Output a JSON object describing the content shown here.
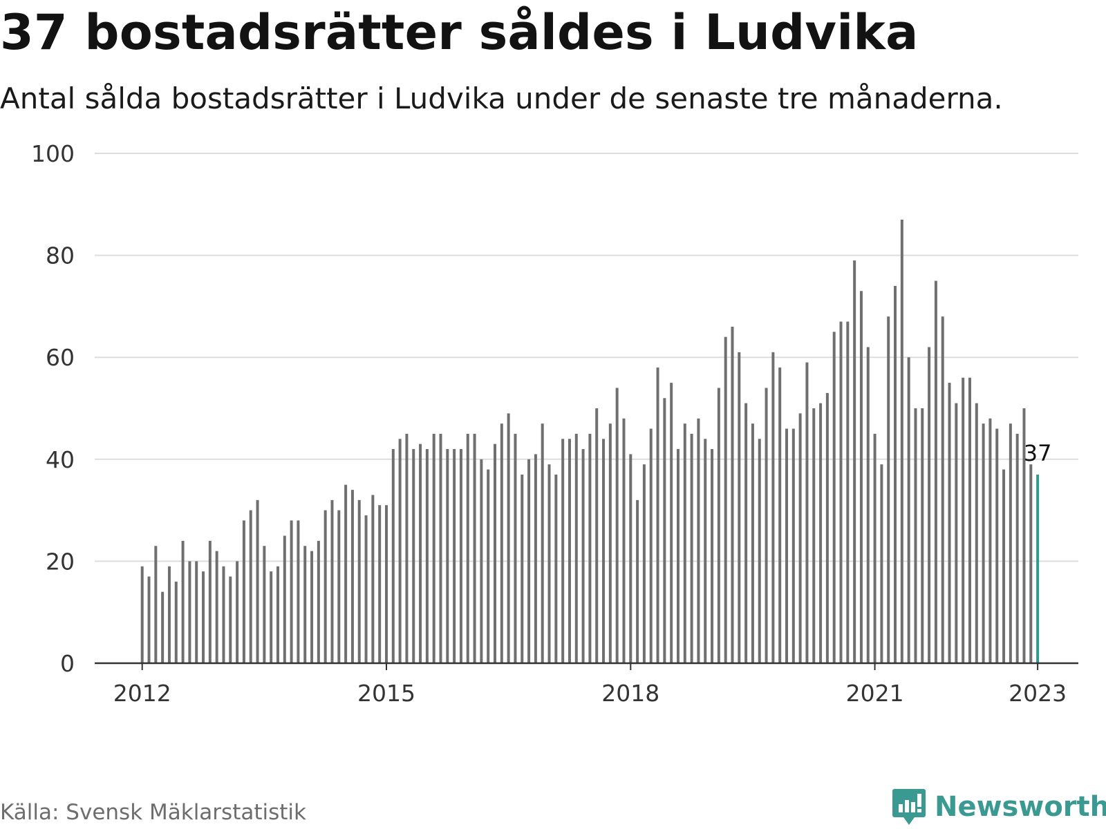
{
  "header": {
    "title": "37 bostadsrätter såldes i Ludvika",
    "subtitle": "Antal sålda bostadsrätter i Ludvika under de senaste tre månaderna."
  },
  "footer": {
    "source": "Källa: Svensk Mäklarstatistik",
    "brand": "Newsworthy",
    "brand_icon": "newsworthy-logo-icon"
  },
  "colors": {
    "bar": "#6f6f6f",
    "highlight": "#2a9d8f",
    "grid": "#dddddd",
    "axis": "#333333",
    "brand": "#3a9a92"
  },
  "chart_data": {
    "type": "bar",
    "title": "37 bostadsrätter såldes i Ludvika",
    "subtitle": "Antal sålda bostadsrätter i Ludvika under de senaste tre månaderna.",
    "ylim": [
      0,
      100
    ],
    "y_ticks": [
      0,
      20,
      40,
      60,
      80,
      100
    ],
    "x_ticks": [
      "2012",
      "2015",
      "2018",
      "2021",
      "2023"
    ],
    "xlim": [
      "2011-06",
      "2023-07"
    ],
    "grid": true,
    "series_start": "2012-01",
    "interval": "month",
    "values": [
      19,
      17,
      23,
      14,
      19,
      16,
      24,
      20,
      20,
      18,
      24,
      22,
      19,
      17,
      20,
      28,
      30,
      32,
      23,
      18,
      19,
      25,
      28,
      28,
      23,
      22,
      24,
      30,
      32,
      30,
      35,
      34,
      32,
      29,
      33,
      31,
      31,
      42,
      44,
      45,
      42,
      43,
      42,
      45,
      45,
      42,
      42,
      42,
      45,
      45,
      40,
      38,
      43,
      47,
      49,
      45,
      37,
      40,
      41,
      47,
      39,
      37,
      44,
      44,
      45,
      42,
      45,
      50,
      44,
      47,
      54,
      48,
      41,
      32,
      39,
      46,
      58,
      52,
      55,
      42,
      47,
      45,
      48,
      44,
      42,
      54,
      64,
      66,
      61,
      51,
      47,
      44,
      54,
      61,
      58,
      46,
      46,
      49,
      59,
      50,
      51,
      53,
      65,
      67,
      67,
      79,
      73,
      62,
      45,
      39,
      68,
      74,
      87,
      60,
      50,
      50,
      62,
      75,
      68,
      55,
      51,
      56,
      56,
      51,
      47,
      48,
      46,
      38,
      47,
      45,
      50,
      39,
      37
    ],
    "highlight": {
      "date": "2023-01",
      "value": 37,
      "label": "37"
    }
  }
}
